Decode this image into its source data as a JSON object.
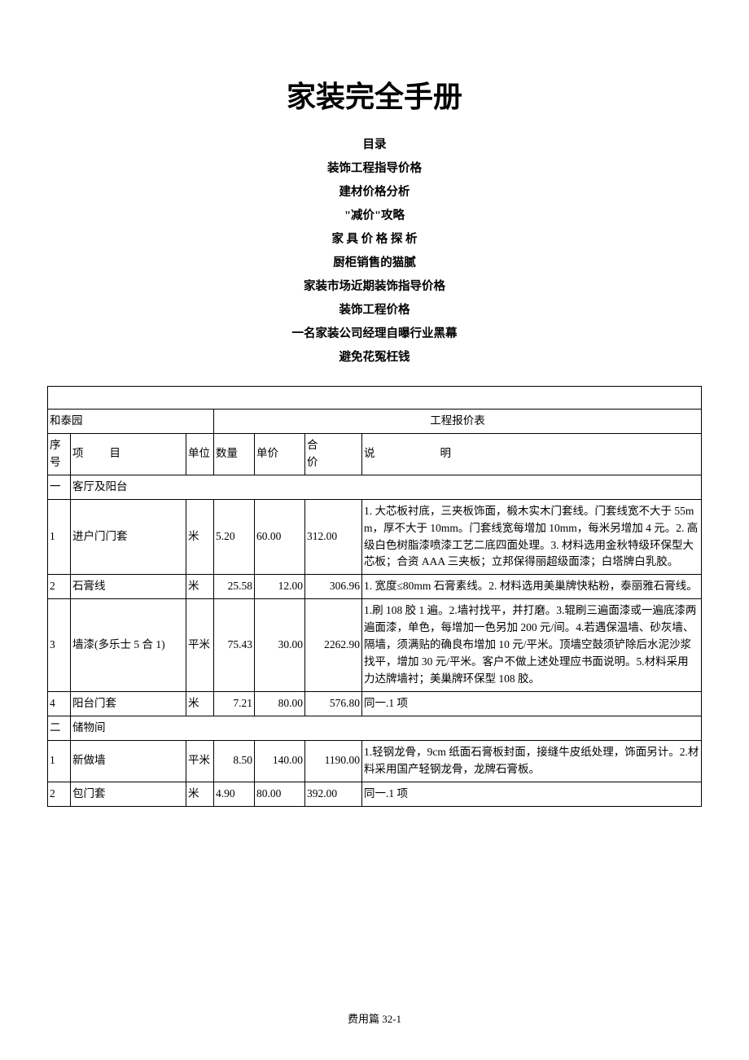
{
  "title": "家装完全手册",
  "toc": {
    "header": "目录",
    "items": [
      "装饰工程指导价格",
      "建材价格分析",
      "\"减价\"攻略",
      "家 具 价 格 探 析",
      "厨柜销售的猫腻",
      "家装市场近期装饰指导价格",
      "装饰工程价格",
      "一名家装公司经理自曝行业黑幕",
      "避免花冤枉钱"
    ]
  },
  "table": {
    "project_name": "和泰园",
    "quote_title": "工程报价表",
    "headers": {
      "sn": "序号",
      "item": "项目",
      "unit": "单位",
      "qty": "数量",
      "price": "单价",
      "total": "合价",
      "desc": "说明"
    },
    "sections": [
      {
        "sn": "一",
        "name": "客厅及阳台",
        "rows": [
          {
            "sn": "1",
            "item": "进户门门套",
            "unit": "米",
            "qty": "5.20",
            "price": "60.00",
            "total": "312.00",
            "align": "l",
            "desc": "1. 大芯板衬底，三夹板饰面，椴木实木门套线。门套线宽不大于 55mm，厚不大于 10mm。门套线宽每增加 10mm，每米另增加 4 元。2. 高级白色树脂漆喷漆工艺二底四面处理。3. 材料选用金秋特级环保型大芯板；合资 AAA 三夹板；立邦保得丽超级面漆；白塔牌白乳胶。"
          },
          {
            "sn": "2",
            "item": "石膏线",
            "unit": "米",
            "qty": "25.58",
            "price": "12.00",
            "total": "306.96",
            "align": "r",
            "desc": "1. 宽度≤80mm 石膏素线。2. 材料选用美巢牌快粘粉，泰丽雅石膏线。"
          },
          {
            "sn": "3",
            "item": "墙漆(多乐士 5 合 1)",
            "unit": "平米",
            "qty": "75.43",
            "price": "30.00",
            "total": "2262.90",
            "align": "r",
            "desc": "1.刷 108 胶 1 遍。2.墙衬找平，并打磨。3.辊刷三遍面漆或一遍底漆两遍面漆，单色，每增加一色另加 200 元/间。4.若遇保温墙、砂灰墙、隔墙，须满贴的确良布增加 10 元/平米。顶墙空鼓须铲除后水泥沙浆找平，增加 30 元/平米。客户不做上述处理应书面说明。5.材料采用力达牌墙衬；美巢牌环保型 108 胶。"
          },
          {
            "sn": "4",
            "item": "阳台门套",
            "unit": "米",
            "qty": "7.21",
            "price": "80.00",
            "total": "576.80",
            "align": "r",
            "desc": "同一.1 项"
          }
        ]
      },
      {
        "sn": "二",
        "name": "储物间",
        "rows": [
          {
            "sn": "1",
            "item": "新做墙",
            "unit": "平米",
            "qty": "8.50",
            "price": "140.00",
            "total": "1190.00",
            "align": "r",
            "desc": "1.轻钢龙骨，9cm 纸面石膏板封面，接缝牛皮纸处理，饰面另计。2.材料采用国产轻钢龙骨，龙牌石膏板。"
          },
          {
            "sn": "2",
            "item": "包门套",
            "unit": "米",
            "qty": "4.90",
            "price": "80.00",
            "total": "392.00",
            "align": "l",
            "desc": "同一.1 项"
          }
        ]
      }
    ]
  },
  "footer": "费用篇 32-1"
}
